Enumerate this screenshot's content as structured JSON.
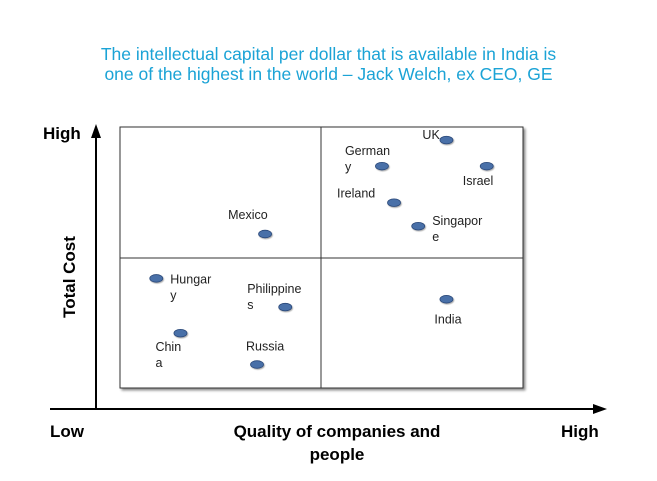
{
  "title_lines": [
    "The intellectual capital per dollar that is available in India is",
    "one of the highest in the world – Jack Welch, ex CEO, GE"
  ],
  "chart_data": {
    "type": "scatter",
    "title": "The intellectual capital per dollar that is available in India is one of the highest in the world – Jack Welch, ex CEO, GE",
    "xlabel_lines": [
      "Quality of companies and",
      "people"
    ],
    "ylabel": "Total Cost",
    "x_low_label": "Low",
    "x_high_label": "High",
    "y_high_label": "High",
    "xlim": [
      0,
      10
    ],
    "ylim": [
      0,
      10
    ],
    "quadrant_split": {
      "x": 5,
      "y": 5
    },
    "grid": false,
    "legend": "none",
    "point_color": "#4a6fa8",
    "points": [
      {
        "name": "UK",
        "label_lines": [
          "UK"
        ],
        "x": 8.1,
        "y": 9.5
      },
      {
        "name": "Germany",
        "label_lines": [
          "German",
          "y"
        ],
        "x": 6.5,
        "y": 8.5
      },
      {
        "name": "Israel",
        "label_lines": [
          "Israel"
        ],
        "x": 9.1,
        "y": 8.5
      },
      {
        "name": "Ireland",
        "label_lines": [
          "Ireland"
        ],
        "x": 6.8,
        "y": 7.1
      },
      {
        "name": "Singapore",
        "label_lines": [
          "Singapor",
          "e"
        ],
        "x": 7.4,
        "y": 6.2
      },
      {
        "name": "Mexico",
        "label_lines": [
          "Mexico"
        ],
        "x": 3.6,
        "y": 5.9
      },
      {
        "name": "Hungary",
        "label_lines": [
          "Hungar",
          "y"
        ],
        "x": 0.9,
        "y": 4.2
      },
      {
        "name": "Philippines",
        "label_lines": [
          "Philippine",
          "s"
        ],
        "x": 4.1,
        "y": 3.1
      },
      {
        "name": "India",
        "label_lines": [
          "India"
        ],
        "x": 8.1,
        "y": 3.4
      },
      {
        "name": "China",
        "label_lines": [
          "Chin",
          "a"
        ],
        "x": 1.5,
        "y": 2.1
      },
      {
        "name": "Russia",
        "label_lines": [
          "Russia"
        ],
        "x": 3.4,
        "y": 0.9
      }
    ]
  }
}
